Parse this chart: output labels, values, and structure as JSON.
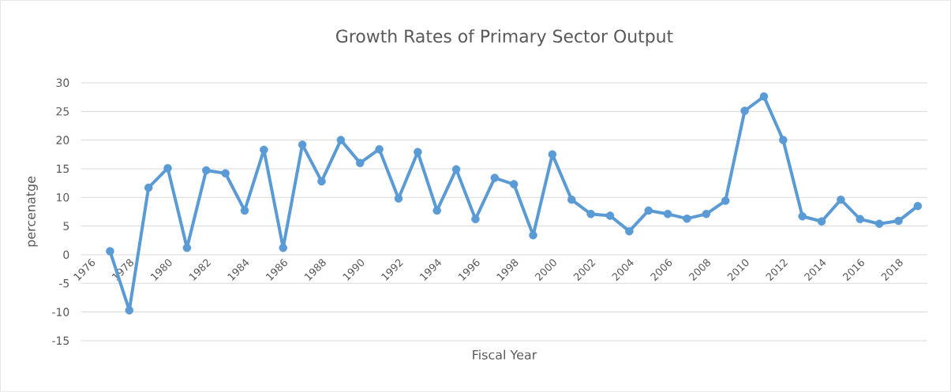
{
  "chart_data": {
    "type": "line",
    "title": "Growth Rates of Primary Sector Output",
    "xlabel": "Fiscal Year",
    "ylabel": "percenatge",
    "categories": [
      "1976",
      null,
      "1978",
      null,
      "1980",
      null,
      "1982",
      null,
      "1984",
      null,
      "1986",
      null,
      "1988",
      null,
      "1990",
      null,
      "1992",
      null,
      "1994",
      null,
      "1996",
      null,
      "1998",
      null,
      "2000",
      null,
      "2002",
      null,
      "2004",
      null,
      "2006",
      null,
      "2008",
      null,
      "2010",
      null,
      "2012",
      null,
      "2014",
      null,
      "2016",
      null,
      "2018",
      null
    ],
    "values": [
      null,
      0.6,
      -9.7,
      11.7,
      15.1,
      1.2,
      14.7,
      14.2,
      7.7,
      18.3,
      1.2,
      19.2,
      12.8,
      20.0,
      16.0,
      18.4,
      9.8,
      17.9,
      7.7,
      14.9,
      6.2,
      13.4,
      12.3,
      3.4,
      17.5,
      9.6,
      7.1,
      6.8,
      4.1,
      7.7,
      7.1,
      6.3,
      7.1,
      9.4,
      25.1,
      27.6,
      20.0,
      6.7,
      5.8,
      9.6,
      6.2,
      5.4,
      5.9,
      8.5
    ],
    "color": "#5b9bd5",
    "ylim": [
      -15,
      30
    ],
    "yticks": [
      -15,
      -10,
      -5,
      0,
      5,
      10,
      15,
      20,
      25,
      30
    ],
    "grid": "y",
    "marker": "circle"
  }
}
